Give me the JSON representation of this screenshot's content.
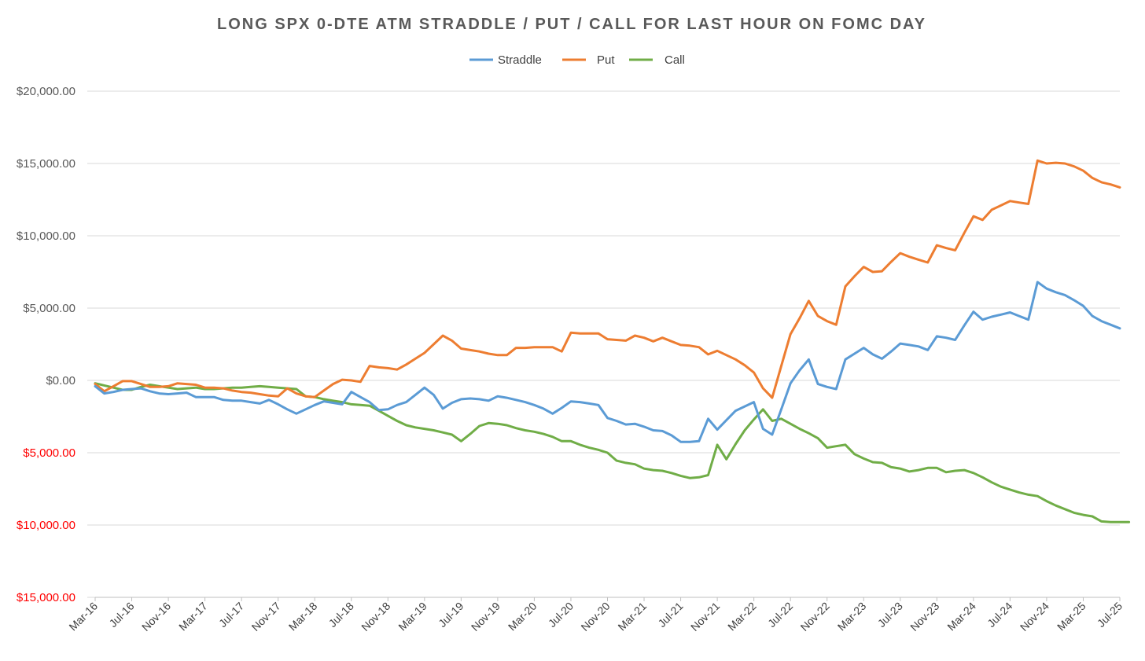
{
  "chart_data": {
    "type": "line",
    "title": "LONG SPX 0-DTE ATM STRADDLE / PUT / CALL FOR LAST HOUR ON FOMC DAY",
    "xlabel": "",
    "ylabel": "",
    "ylim": [
      -15000,
      20000
    ],
    "grid": true,
    "legend_position": "top",
    "y_ticks": [
      {
        "value": 20000,
        "label": "$20,000.00",
        "color": "#595959"
      },
      {
        "value": 15000,
        "label": "$15,000.00",
        "color": "#595959"
      },
      {
        "value": 10000,
        "label": "$10,000.00",
        "color": "#595959"
      },
      {
        "value": 5000,
        "label": "$5,000.00",
        "color": "#595959"
      },
      {
        "value": 0,
        "label": "$0.00",
        "color": "#595959"
      },
      {
        "value": -5000,
        "label": "$5,000.00",
        "color": "#ff0000"
      },
      {
        "value": -10000,
        "label": "$10,000.00",
        "color": "#ff0000"
      },
      {
        "value": -15000,
        "label": "$15,000.00",
        "color": "#ff0000"
      }
    ],
    "x_tick_labels": [
      {
        "index": 0,
        "label": "Mar-16"
      },
      {
        "index": 4,
        "label": "Jul-16"
      },
      {
        "index": 8,
        "label": "Nov-16"
      },
      {
        "index": 12,
        "label": "Mar-17"
      },
      {
        "index": 16,
        "label": "Jul-17"
      },
      {
        "index": 20,
        "label": "Nov-17"
      },
      {
        "index": 24,
        "label": "Mar-18"
      },
      {
        "index": 28,
        "label": "Jul-18"
      },
      {
        "index": 32,
        "label": "Nov-18"
      },
      {
        "index": 36,
        "label": "Mar-19"
      },
      {
        "index": 40,
        "label": "Jul-19"
      },
      {
        "index": 44,
        "label": "Nov-19"
      },
      {
        "index": 48,
        "label": "Mar-20"
      },
      {
        "index": 52,
        "label": "Jul-20"
      },
      {
        "index": 56,
        "label": "Nov-20"
      },
      {
        "index": 60,
        "label": "Mar-21"
      },
      {
        "index": 64,
        "label": "Jul-21"
      },
      {
        "index": 68,
        "label": "Nov-21"
      },
      {
        "index": 72,
        "label": "Mar-22"
      },
      {
        "index": 76,
        "label": "Jul-22"
      },
      {
        "index": 80,
        "label": "Nov-22"
      },
      {
        "index": 84,
        "label": "Mar-23"
      },
      {
        "index": 88,
        "label": "Jul-23"
      },
      {
        "index": 92,
        "label": "Nov-23"
      },
      {
        "index": 96,
        "label": "Mar-24"
      },
      {
        "index": 100,
        "label": "Jul-24"
      },
      {
        "index": 104,
        "label": "Nov-24"
      },
      {
        "index": 108,
        "label": "Mar-25"
      },
      {
        "index": 112,
        "label": "Jul-25"
      }
    ],
    "series": [
      {
        "name": "Straddle",
        "color": "#5b9bd5",
        "values": [
          -400,
          -900,
          -800,
          -650,
          -600,
          -550,
          -750,
          -900,
          -950,
          -900,
          -850,
          -1150,
          -1150,
          -1150,
          -1350,
          -1400,
          -1400,
          -1500,
          -1600,
          -1350,
          -1650,
          -2000,
          -2300,
          -2000,
          -1700,
          -1450,
          -1550,
          -1650,
          -800,
          -1150,
          -1500,
          -2050,
          -2000,
          -1700,
          -1500,
          -1000,
          -500,
          -1000,
          -1950,
          -1550,
          -1300,
          -1250,
          -1300,
          -1400,
          -1100,
          -1200,
          -1350,
          -1500,
          -1700,
          -1950,
          -2300,
          -1900,
          -1450,
          -1500,
          -1600,
          -1700,
          -2600,
          -2800,
          -3050,
          -3000,
          -3200,
          -3450,
          -3500,
          -3800,
          -4250,
          -4250,
          -4200,
          -2650,
          -3400,
          -2750,
          -2100,
          -1800,
          -1500,
          -3350,
          -3750,
          -2000,
          -200,
          700,
          1450,
          -250,
          -450,
          -600,
          1450,
          1850,
          2250,
          1800,
          1500,
          2000,
          2550,
          2450,
          2350,
          2100,
          3050,
          2950,
          2800,
          3800,
          4750,
          4200,
          4400,
          4550,
          4700,
          4450,
          4200,
          6800,
          6350,
          6100,
          5900,
          5550,
          5150,
          4450,
          4100,
          3850,
          3600
        ]
      },
      {
        "name": "Put",
        "color": "#ed7d31",
        "values": [
          -250,
          -750,
          -400,
          -50,
          -50,
          -250,
          -450,
          -450,
          -400,
          -200,
          -250,
          -300,
          -500,
          -500,
          -550,
          -700,
          -800,
          -850,
          -950,
          -1050,
          -1100,
          -550,
          -900,
          -1100,
          -1150,
          -700,
          -250,
          50,
          0,
          -100,
          1000,
          900,
          850,
          750,
          1100,
          1500,
          1900,
          2500,
          3100,
          2750,
          2200,
          2100,
          2000,
          1850,
          1750,
          1750,
          2250,
          2250,
          2300,
          2300,
          2300,
          2000,
          3300,
          3250,
          3250,
          3250,
          2850,
          2800,
          2750,
          3100,
          2950,
          2700,
          2950,
          2700,
          2450,
          2400,
          2300,
          1800,
          2050,
          1750,
          1450,
          1050,
          550,
          -550,
          -1200,
          1000,
          3200,
          4300,
          5500,
          4450,
          4100,
          3850,
          6500,
          7200,
          7850,
          7500,
          7550,
          8200,
          8800,
          8550,
          8350,
          8150,
          9350,
          9150,
          9000,
          10200,
          11350,
          11100,
          11800,
          12100,
          12400,
          12300,
          12200,
          15200,
          15000,
          15050,
          15000,
          14800,
          14500,
          14000,
          13700,
          13550,
          13350
        ]
      },
      {
        "name": "Call",
        "color": "#70ad47",
        "values": [
          -200,
          -350,
          -500,
          -650,
          -650,
          -450,
          -300,
          -400,
          -500,
          -600,
          -550,
          -500,
          -600,
          -600,
          -550,
          -500,
          -500,
          -450,
          -400,
          -450,
          -500,
          -550,
          -600,
          -1100,
          -1150,
          -1300,
          -1400,
          -1500,
          -1650,
          -1700,
          -1750,
          -2100,
          -2450,
          -2800,
          -3100,
          -3250,
          -3350,
          -3450,
          -3600,
          -3750,
          -4200,
          -3700,
          -3150,
          -2950,
          -3000,
          -3100,
          -3300,
          -3450,
          -3550,
          -3700,
          -3900,
          -4200,
          -4200,
          -4450,
          -4650,
          -4800,
          -5000,
          -5550,
          -5700,
          -5800,
          -6100,
          -6200,
          -6250,
          -6400,
          -6600,
          -6750,
          -6700,
          -6550,
          -4450,
          -5450,
          -4400,
          -3450,
          -2700,
          -2000,
          -2800,
          -2650,
          -3000,
          -3350,
          -3650,
          -4000,
          -4650,
          -4550,
          -4450,
          -5100,
          -5400,
          -5650,
          -5700,
          -6000,
          -6100,
          -6300,
          -6200,
          -6050,
          -6050,
          -6350,
          -6250,
          -6200,
          -6400,
          -6700,
          -7050,
          -7350,
          -7550,
          -7750,
          -7900,
          -8000,
          -8350,
          -8650,
          -8900,
          -9150,
          -9300,
          -9400,
          -9750,
          -9800,
          -9800,
          -9800
        ]
      }
    ]
  }
}
